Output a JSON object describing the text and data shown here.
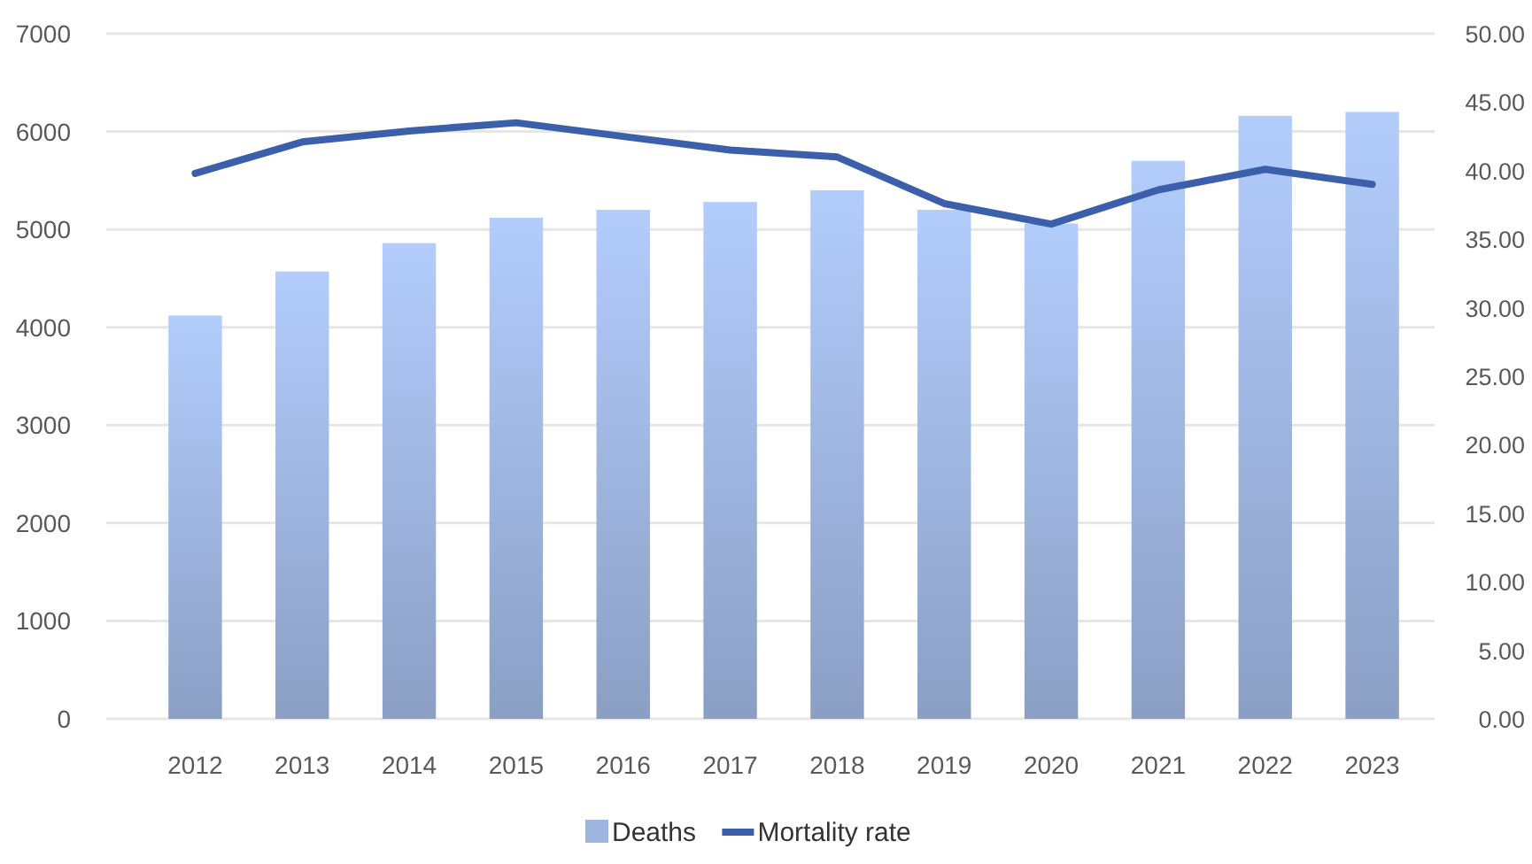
{
  "chart_data": {
    "type": "bar",
    "categories": [
      "2012",
      "2013",
      "2014",
      "2015",
      "2016",
      "2017",
      "2018",
      "2019",
      "2020",
      "2021",
      "2022",
      "2023"
    ],
    "series": [
      {
        "name": "Deaths",
        "color": "#9db4de",
        "values": [
          4120,
          4570,
          4860,
          5120,
          5200,
          5280,
          5400,
          5200,
          5060,
          5700,
          6160,
          6200
        ]
      },
      {
        "name": "Mortality rate",
        "type": "line",
        "axis": "y2",
        "color": "#3c5fab",
        "values": [
          39.8,
          42.1,
          42.9,
          43.5,
          42.5,
          41.5,
          41.0,
          37.6,
          36.1,
          38.6,
          40.1,
          39.0
        ]
      }
    ],
    "ylim": [
      0,
      7000
    ],
    "yticks": [
      0,
      1000,
      2000,
      3000,
      4000,
      5000,
      6000,
      7000
    ],
    "y2lim": [
      0,
      50
    ],
    "y2ticks": [
      {
        "value": 0,
        "label": "0.00"
      },
      {
        "value": 5,
        "label": "5.00"
      },
      {
        "value": 10,
        "label": "10.00"
      },
      {
        "value": 15,
        "label": "15.00"
      },
      {
        "value": 20,
        "label": "20.00"
      },
      {
        "value": 25,
        "label": "25.00"
      },
      {
        "value": 30,
        "label": "30.00"
      },
      {
        "value": 35,
        "label": "35.00"
      },
      {
        "value": 40,
        "label": "40.00"
      },
      {
        "value": 45,
        "label": "45.00"
      },
      {
        "value": 50,
        "label": "50.00"
      }
    ],
    "grid": "y",
    "legend": "bottom",
    "marker": "none",
    "line_style": "solid"
  }
}
